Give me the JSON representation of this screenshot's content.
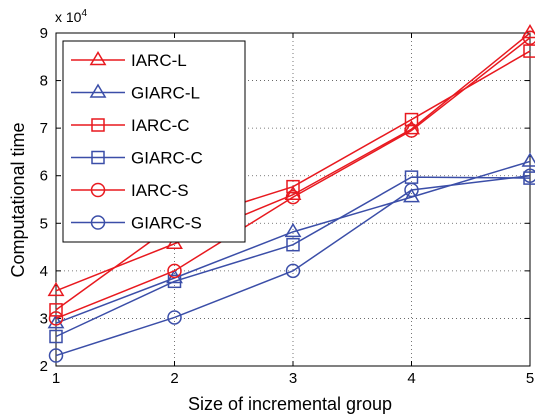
{
  "chart_data": {
    "type": "line",
    "xlabel": "Size of incremental group",
    "ylabel": "Computational time",
    "y_multiplier_label": "x 10",
    "y_multiplier_exponent": "4",
    "x": [
      1,
      2,
      3,
      4,
      5
    ],
    "xlim": [
      1,
      5
    ],
    "ylim": [
      2,
      9
    ],
    "xticks": [
      "1",
      "2",
      "3",
      "4",
      "5"
    ],
    "yticks": [
      "2",
      "3",
      "4",
      "5",
      "6",
      "7",
      "8",
      "9"
    ],
    "grid": true,
    "legend_position": "top-left",
    "series": [
      {
        "name": "IARC-L",
        "color": "#e8191f",
        "marker": "triangle",
        "values": [
          3.58,
          4.57,
          5.6,
          6.98,
          9.0
        ]
      },
      {
        "name": "GIARC-L",
        "color": "#3b4ea8",
        "marker": "triangle",
        "values": [
          2.9,
          3.85,
          4.82,
          5.55,
          6.3
        ]
      },
      {
        "name": "IARC-C",
        "color": "#e8191f",
        "marker": "square",
        "values": [
          3.18,
          4.98,
          5.77,
          7.18,
          8.62
        ]
      },
      {
        "name": "GIARC-C",
        "color": "#3b4ea8",
        "marker": "square",
        "values": [
          2.62,
          3.78,
          4.55,
          5.97,
          5.95
        ]
      },
      {
        "name": "IARC-S",
        "color": "#e8191f",
        "marker": "circle",
        "values": [
          3.0,
          4.0,
          5.55,
          6.95,
          8.9
        ]
      },
      {
        "name": "GIARC-S",
        "color": "#3b4ea8",
        "marker": "circle",
        "values": [
          2.22,
          3.02,
          4.0,
          5.7,
          6.0
        ]
      }
    ]
  }
}
